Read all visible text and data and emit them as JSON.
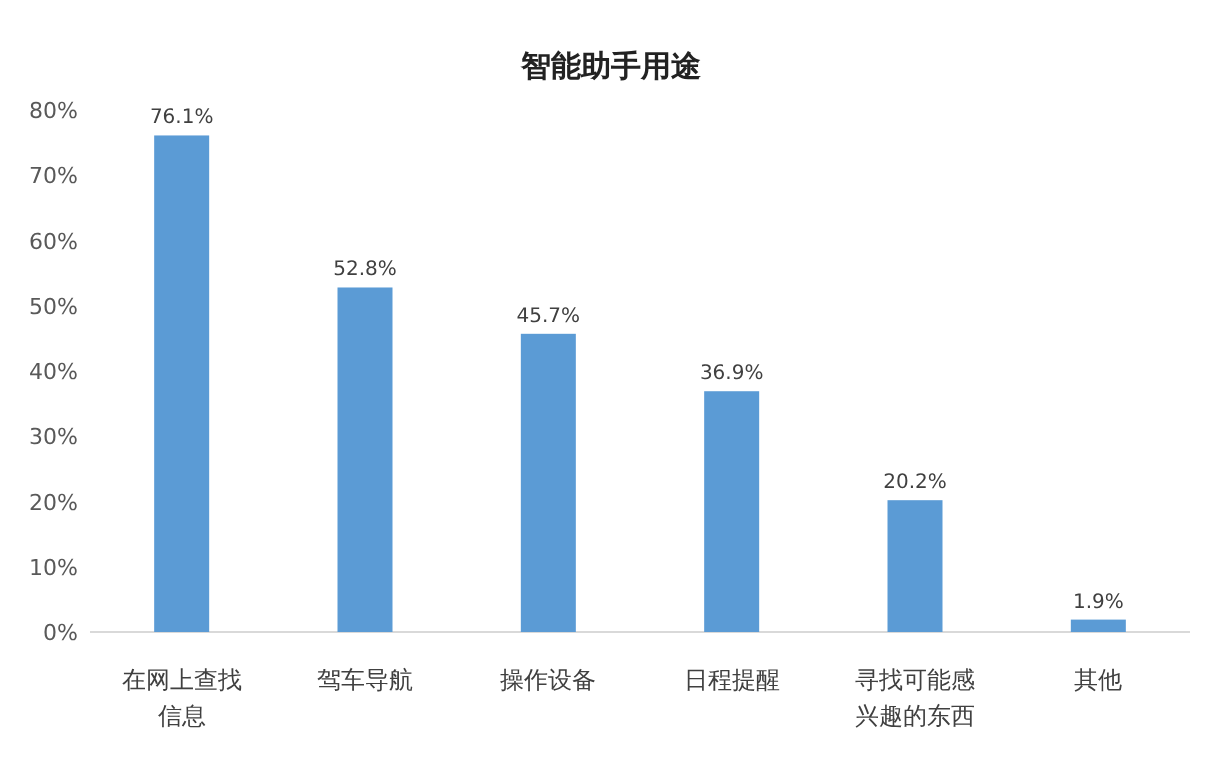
{
  "chart_data": {
    "type": "bar",
    "title": "智能助手用途",
    "categories": [
      "在网上查找信息",
      "驾车导航",
      "操作设备",
      "日程提醒",
      "寻找可能感兴趣的东西",
      "其他"
    ],
    "values": [
      76.1,
      52.8,
      45.7,
      36.9,
      20.2,
      1.9
    ],
    "value_labels": [
      "76.1%",
      "52.8%",
      "45.7%",
      "36.9%",
      "20.2%",
      "1.9%"
    ],
    "color": "#5b9bd5",
    "ylim": [
      0,
      80
    ],
    "yticks": [
      {
        "value": 0,
        "label": "0%"
      },
      {
        "value": 10,
        "label": "10%"
      },
      {
        "value": 20,
        "label": "20%"
      },
      {
        "value": 30,
        "label": "30%"
      },
      {
        "value": 40,
        "label": "40%"
      },
      {
        "value": 50,
        "label": "50%"
      },
      {
        "value": 60,
        "label": "60%"
      },
      {
        "value": 70,
        "label": "70%"
      },
      {
        "value": 80,
        "label": "80%"
      }
    ],
    "grid": false
  }
}
